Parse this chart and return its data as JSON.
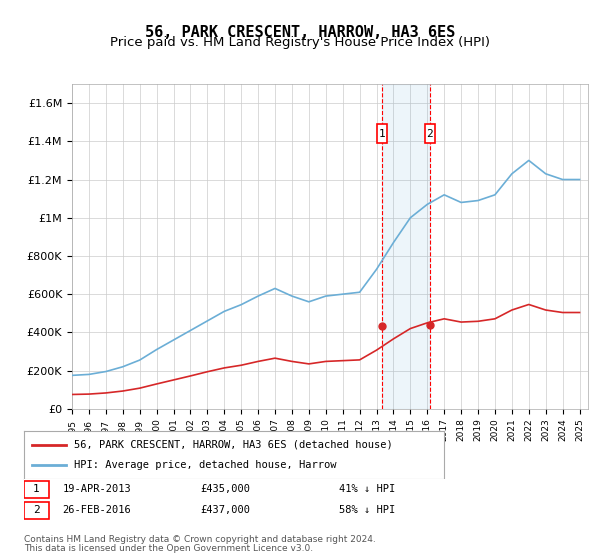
{
  "title": "56, PARK CRESCENT, HARROW, HA3 6ES",
  "subtitle": "Price paid vs. HM Land Registry's House Price Index (HPI)",
  "title_fontsize": 11,
  "subtitle_fontsize": 9.5,
  "ylabel": "",
  "xlabel": "",
  "ylim": [
    0,
    1700000
  ],
  "yticks": [
    0,
    200000,
    400000,
    600000,
    800000,
    1000000,
    1200000,
    1400000,
    1600000
  ],
  "ytick_labels": [
    "£0",
    "£200K",
    "£400K",
    "£600K",
    "£800K",
    "£1M",
    "£1.2M",
    "£1.4M",
    "£1.6M"
  ],
  "xlim_start": 1995.0,
  "xlim_end": 2025.5,
  "hpi_color": "#6baed6",
  "price_color": "#d62728",
  "sale1_date_num": 2013.3,
  "sale1_price": 435000,
  "sale2_date_num": 2016.16,
  "sale2_price": 437000,
  "sale1_label": "1",
  "sale2_label": "2",
  "sale1_date_str": "19-APR-2013",
  "sale2_date_str": "26-FEB-2016",
  "sale1_pct": "41% ↓ HPI",
  "sale2_pct": "58% ↓ HPI",
  "legend_line1": "56, PARK CRESCENT, HARROW, HA3 6ES (detached house)",
  "legend_line2": "HPI: Average price, detached house, Harrow",
  "footer1": "Contains HM Land Registry data © Crown copyright and database right 2024.",
  "footer2": "This data is licensed under the Open Government Licence v3.0.",
  "hpi_years": [
    1995,
    1996,
    1997,
    1998,
    1999,
    2000,
    2001,
    2002,
    2003,
    2004,
    2005,
    2006,
    2007,
    2008,
    2009,
    2010,
    2011,
    2012,
    2013,
    2014,
    2015,
    2016,
    2017,
    2018,
    2019,
    2020,
    2021,
    2022,
    2023,
    2024,
    2025
  ],
  "hpi_values": [
    175000,
    180000,
    195000,
    220000,
    255000,
    310000,
    360000,
    410000,
    460000,
    510000,
    545000,
    590000,
    630000,
    590000,
    560000,
    590000,
    600000,
    610000,
    730000,
    870000,
    1000000,
    1070000,
    1120000,
    1080000,
    1090000,
    1120000,
    1230000,
    1300000,
    1230000,
    1200000,
    1200000
  ],
  "red_years": [
    1995,
    1996,
    1997,
    1998,
    1999,
    2000,
    2001,
    2002,
    2003,
    2004,
    2005,
    2006,
    2007,
    2008,
    2009,
    2010,
    2011,
    2012,
    2013,
    2014,
    2015,
    2016,
    2017,
    2018,
    2019,
    2020,
    2021,
    2022,
    2023,
    2024,
    2025
  ],
  "red_values": [
    75000,
    77000,
    83000,
    93000,
    108000,
    130000,
    151000,
    172000,
    194000,
    214000,
    228000,
    248000,
    265000,
    248000,
    235000,
    248000,
    252000,
    256000,
    307000,
    366000,
    420000,
    450000,
    471000,
    454000,
    458000,
    471000,
    517000,
    546000,
    517000,
    504000,
    504000
  ],
  "background_color": "#f5f9ff"
}
